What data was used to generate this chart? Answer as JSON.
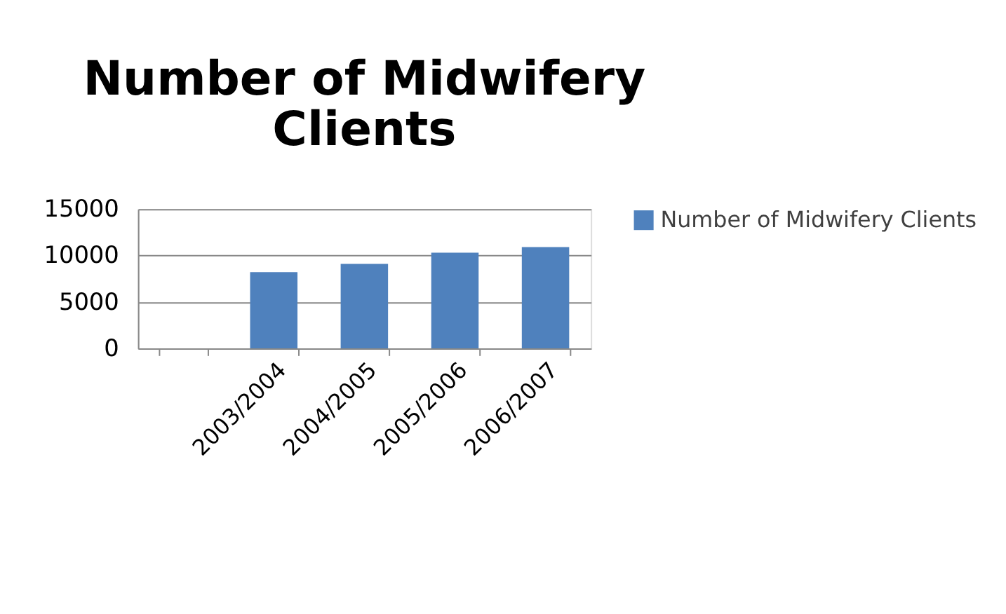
{
  "chart_data": {
    "type": "bar",
    "title": "Number of Midwifery Clients",
    "categories": [
      null,
      "2003/2004",
      "2004/2005",
      "2005/2006",
      "2006/2007"
    ],
    "series": [
      {
        "name": "Number of Midwifery Clients",
        "color": "#4f81bd",
        "values": [
          null,
          8200,
          9100,
          10300,
          10900
        ]
      }
    ],
    "ylim": [
      0,
      15000
    ],
    "yticks": [
      0,
      5000,
      10000,
      15000
    ],
    "grid": "y",
    "legend": "right"
  }
}
